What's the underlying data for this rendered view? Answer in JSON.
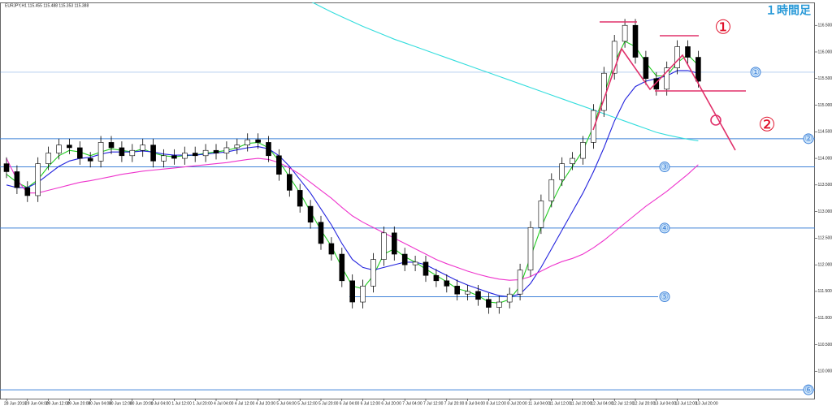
{
  "chart_data": {
    "type": "candlestick",
    "symbol_info": "EURJPY,H1  115.455 115.488 115.353 115.388",
    "timeframe_note": "１時間足",
    "annotations": [
      "①",
      "②"
    ],
    "categories": [
      "28 Jun 2016",
      null,
      "29 Jun 04:00",
      null,
      "29 Jun 12:00",
      null,
      "29 Jun 20:00",
      null,
      "30 Jun 04:00",
      null,
      "30 Jun 12:00",
      null,
      "30 Jun 20:00",
      null,
      "1 Jul 04:00",
      null,
      "1 Jul 12:00",
      null,
      "1 Jul 20:00",
      null,
      "4 Jul 04:00",
      null,
      "4 Jul 12:00",
      null,
      "4 Jul 20:00",
      null,
      "5 Jul 04:00",
      null,
      "5 Jul 12:00",
      null,
      "5 Jul 20:00",
      null,
      "6 Jul 04:00",
      null,
      "6 Jul 12:00",
      null,
      "6 Jul 20:00",
      null,
      "7 Jul 04:00",
      null,
      "7 Jul 12:00",
      null,
      "7 Jul 20:00",
      null,
      "8 Jul 04:00",
      null,
      "8 Jul 12:00",
      null,
      "8 Jul 20:00",
      null,
      "11 Jul 04:00",
      null,
      "11 Jul 12:00",
      null,
      "11 Jul 20:00",
      null,
      "12 Jul 04:00",
      null,
      "12 Jul 12:00",
      null,
      "12 Jul 20:00",
      null,
      "13 Jul 04:00",
      null,
      "13 Jul 12:00",
      null,
      "13 Jul 20:00"
    ],
    "open": [
      113.9,
      113.75,
      113.45,
      113.3,
      113.9,
      114.1,
      114.25,
      114.2,
      114.0,
      113.95,
      114.3,
      114.2,
      114.05,
      114.15,
      114.25,
      113.95,
      114.05,
      114.0,
      114.1,
      114.05,
      114.15,
      114.1,
      114.2,
      114.25,
      114.35,
      114.3,
      114.05,
      113.7,
      113.4,
      113.1,
      112.8,
      112.4,
      112.2,
      111.7,
      111.3,
      111.6,
      112.1,
      112.6,
      112.2,
      112.0,
      112.05,
      111.8,
      111.7,
      111.6,
      111.45,
      111.5,
      111.35,
      111.2,
      111.3,
      111.45,
      111.9,
      112.7,
      113.2,
      113.6,
      113.9,
      114.0,
      114.3,
      114.9,
      115.6,
      116.2,
      116.5,
      115.9,
      115.5,
      115.3,
      115.7,
      116.1,
      115.9
    ],
    "high": [
      114.02,
      113.87,
      113.57,
      114.02,
      114.22,
      114.37,
      114.37,
      114.32,
      114.12,
      114.42,
      114.42,
      114.32,
      114.27,
      114.37,
      114.37,
      114.17,
      114.17,
      114.22,
      114.22,
      114.27,
      114.27,
      114.32,
      114.37,
      114.47,
      114.47,
      114.42,
      114.17,
      113.82,
      113.52,
      113.22,
      112.92,
      112.52,
      112.32,
      111.82,
      111.72,
      112.22,
      112.72,
      112.72,
      112.32,
      112.17,
      112.17,
      111.92,
      111.82,
      111.72,
      111.62,
      111.62,
      111.47,
      111.42,
      111.57,
      112.02,
      112.82,
      113.32,
      113.72,
      114.02,
      114.12,
      114.42,
      115.02,
      115.72,
      116.32,
      116.62,
      116.62,
      116.02,
      115.62,
      115.82,
      116.22,
      116.22,
      116.02
    ],
    "low": [
      113.63,
      113.33,
      113.18,
      113.18,
      113.78,
      113.98,
      114.08,
      113.88,
      113.83,
      113.83,
      114.08,
      113.93,
      113.93,
      114.03,
      113.83,
      113.83,
      113.88,
      113.88,
      113.93,
      113.93,
      113.98,
      113.98,
      114.08,
      114.13,
      114.18,
      113.93,
      113.58,
      113.28,
      112.98,
      112.68,
      112.28,
      112.08,
      111.58,
      111.18,
      111.18,
      111.48,
      111.98,
      112.08,
      111.88,
      111.88,
      111.68,
      111.58,
      111.48,
      111.33,
      111.33,
      111.23,
      111.08,
      111.08,
      111.18,
      111.33,
      111.78,
      112.58,
      113.08,
      113.48,
      113.78,
      113.88,
      114.18,
      114.78,
      115.48,
      116.08,
      115.78,
      115.38,
      115.18,
      115.18,
      115.58,
      115.78,
      115.33
    ],
    "close": [
      113.75,
      113.45,
      113.3,
      113.9,
      114.1,
      114.25,
      114.2,
      114.0,
      113.95,
      114.3,
      114.2,
      114.05,
      114.15,
      114.25,
      113.95,
      114.05,
      114.0,
      114.1,
      114.05,
      114.15,
      114.1,
      114.2,
      114.25,
      114.35,
      114.3,
      114.05,
      113.7,
      113.4,
      113.1,
      112.8,
      112.4,
      112.2,
      111.7,
      111.3,
      111.6,
      112.1,
      112.6,
      112.2,
      112.0,
      112.05,
      111.8,
      111.7,
      111.6,
      111.45,
      111.5,
      111.35,
      111.2,
      111.3,
      111.45,
      111.9,
      112.7,
      113.2,
      113.6,
      113.9,
      114.0,
      114.3,
      114.9,
      115.6,
      116.2,
      116.5,
      115.9,
      115.5,
      115.3,
      115.7,
      116.1,
      115.9,
      115.45
    ],
    "series": [
      {
        "color": "#22cc22",
        "values": [
          113.7,
          113.55,
          113.45,
          113.6,
          113.85,
          114.05,
          114.15,
          114.12,
          114.05,
          114.12,
          114.18,
          114.15,
          114.12,
          114.18,
          114.1,
          114.05,
          114.03,
          114.05,
          114.06,
          114.1,
          114.12,
          114.15,
          114.2,
          114.28,
          114.3,
          114.2,
          113.95,
          113.65,
          113.35,
          113.0,
          112.65,
          112.35,
          111.95,
          111.6,
          111.55,
          111.8,
          112.2,
          112.3,
          112.15,
          112.05,
          111.92,
          111.8,
          111.68,
          111.55,
          111.5,
          111.42,
          111.3,
          111.28,
          111.35,
          111.6,
          112.15,
          112.7,
          113.15,
          113.55,
          113.85,
          114.15,
          114.6,
          115.2,
          115.8,
          116.2,
          116.1,
          115.8,
          115.55,
          115.55,
          115.8,
          115.95,
          115.75
        ]
      },
      {
        "color": "#2222dd",
        "values": [
          113.5,
          113.45,
          113.45,
          113.55,
          113.7,
          113.85,
          113.95,
          114.0,
          114.02,
          114.08,
          114.12,
          114.12,
          114.12,
          114.14,
          114.12,
          114.08,
          114.06,
          114.06,
          114.06,
          114.08,
          114.1,
          114.12,
          114.16,
          114.2,
          114.22,
          114.18,
          114.05,
          113.85,
          113.6,
          113.35,
          113.05,
          112.75,
          112.4,
          112.1,
          111.95,
          111.9,
          111.95,
          112.0,
          112.05,
          112.05,
          112.0,
          111.9,
          111.8,
          111.7,
          111.62,
          111.55,
          111.48,
          111.42,
          111.4,
          111.45,
          111.65,
          111.95,
          112.3,
          112.65,
          113.0,
          113.35,
          113.75,
          114.2,
          114.7,
          115.1,
          115.35,
          115.45,
          115.5,
          115.55,
          115.65,
          115.65,
          115.6
        ]
      },
      {
        "color": "#ee33cc",
        "values": [
          114.0,
          113.6,
          113.35,
          113.35,
          113.4,
          113.45,
          113.5,
          113.55,
          113.58,
          113.62,
          113.66,
          113.7,
          113.73,
          113.76,
          113.78,
          113.8,
          113.82,
          113.84,
          113.86,
          113.88,
          113.9,
          113.92,
          113.95,
          113.98,
          114.0,
          113.98,
          113.92,
          113.82,
          113.7,
          113.55,
          113.4,
          113.25,
          113.08,
          112.92,
          112.8,
          112.7,
          112.6,
          112.5,
          112.4,
          112.3,
          112.2,
          112.1,
          112.02,
          111.95,
          111.88,
          111.82,
          111.77,
          111.73,
          111.71,
          111.72,
          111.78,
          111.88,
          111.98,
          112.06,
          112.12,
          112.2,
          112.32,
          112.46,
          112.62,
          112.78,
          112.94,
          113.1,
          113.24,
          113.38,
          113.54,
          113.7,
          113.88
        ]
      },
      {
        "color": "#33dddd",
        "values": [
          null,
          null,
          null,
          null,
          null,
          null,
          null,
          null,
          null,
          null,
          null,
          null,
          null,
          null,
          null,
          null,
          null,
          null,
          null,
          null,
          null,
          null,
          null,
          null,
          null,
          null,
          null,
          null,
          null,
          116.95,
          116.85,
          116.75,
          116.66,
          116.57,
          116.48,
          116.4,
          116.32,
          116.24,
          116.17,
          116.1,
          116.03,
          115.96,
          115.89,
          115.82,
          115.75,
          115.68,
          115.61,
          115.54,
          115.47,
          115.4,
          115.33,
          115.26,
          115.19,
          115.12,
          115.05,
          114.98,
          114.91,
          114.84,
          114.77,
          114.7,
          114.63,
          114.56,
          114.49,
          114.44,
          114.4,
          114.36,
          114.33
        ]
      }
    ],
    "levels": [
      {
        "value": 115.62,
        "label": "①"
      },
      {
        "value": 114.37,
        "label": "②"
      },
      {
        "value": 113.84,
        "label": "③"
      },
      {
        "value": 112.69,
        "label": "④"
      },
      {
        "value": 111.4,
        "label": "⑤"
      },
      {
        "value": 109.65,
        "label": "⑥"
      }
    ],
    "level_color": "#3f82d8",
    "ylim": [
      109.5,
      116.9
    ],
    "yticks": [
      {
        "value": 110,
        "label": "110.000"
      },
      {
        "value": 110.5,
        "label": "110.500"
      },
      {
        "value": 111,
        "label": "111.000"
      },
      {
        "value": 111.5,
        "label": "111.500"
      },
      {
        "value": 112,
        "label": "112.000"
      },
      {
        "value": 112.5,
        "label": "112.500"
      },
      {
        "value": 113,
        "label": "113.000"
      },
      {
        "value": 113.5,
        "label": "113.500"
      },
      {
        "value": 114,
        "label": "114.000"
      },
      {
        "value": 114.5,
        "label": "114.500"
      },
      {
        "value": 115,
        "label": "115.000"
      },
      {
        "value": 115.5,
        "label": "115.500"
      },
      {
        "value": 116,
        "label": "116.000"
      },
      {
        "value": 116.5,
        "label": "116.500"
      }
    ]
  }
}
